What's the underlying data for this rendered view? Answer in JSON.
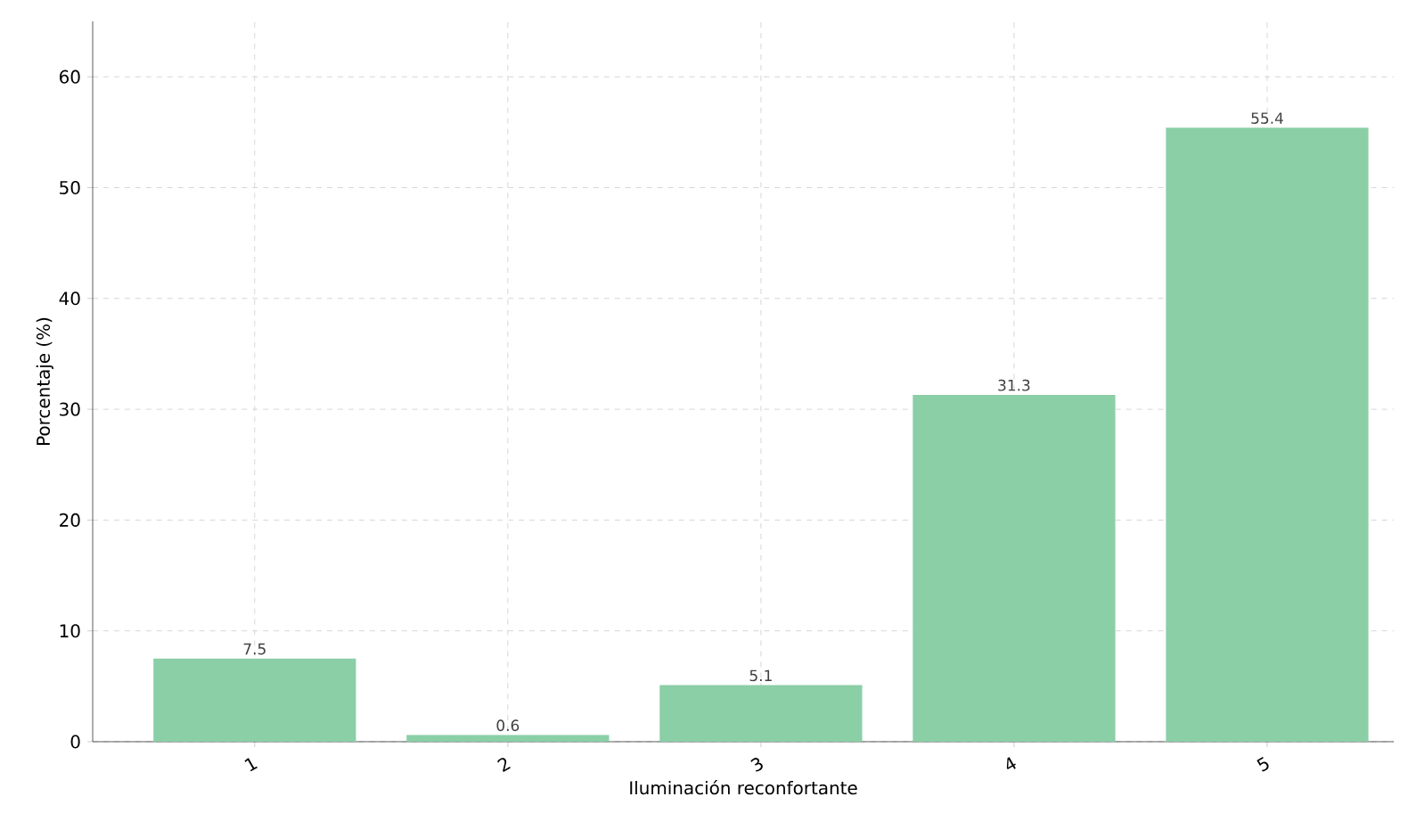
{
  "chart_data": {
    "type": "bar",
    "xlabel": "Iluminación reconfortante",
    "ylabel": "Porcentaje (%)",
    "categories": [
      "1",
      "2",
      "3",
      "4",
      "5"
    ],
    "values": [
      7.5,
      0.6,
      5.1,
      31.3,
      55.4
    ],
    "color": "#8bcfa7",
    "ylim": [
      0,
      65
    ],
    "yticks": [
      0,
      10,
      20,
      30,
      40,
      50,
      60
    ],
    "grid": true,
    "data_labels": true
  }
}
